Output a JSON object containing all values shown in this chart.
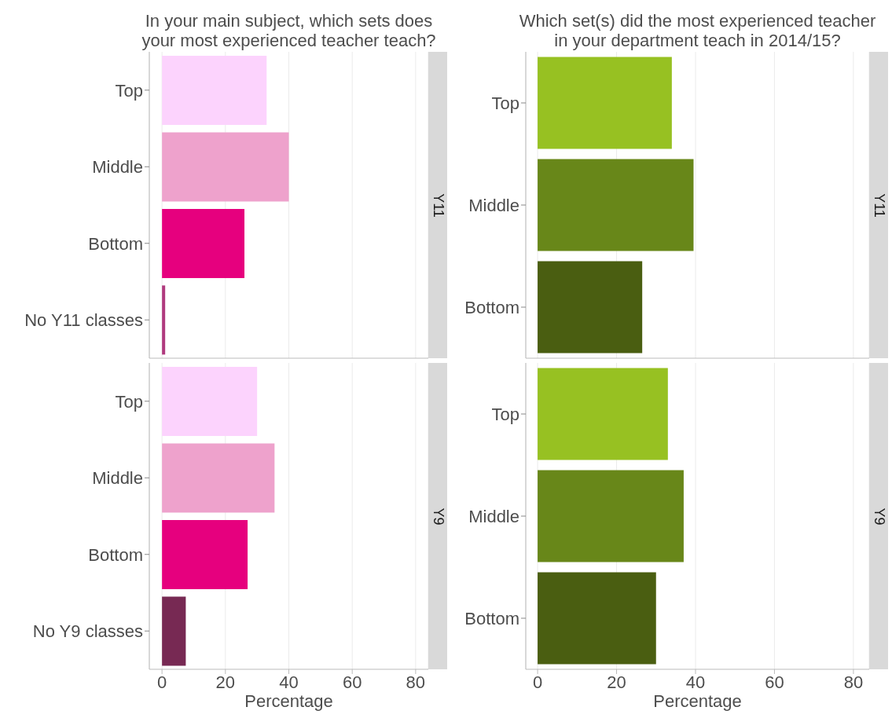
{
  "chart_data": [
    {
      "type": "bar",
      "orientation": "horizontal",
      "title": "In your main subject, which sets does\nyour most experienced teacher teach?",
      "y2label": "Y11",
      "categories": [
        "Top",
        "Middle",
        "Bottom",
        "No Y11 classes"
      ],
      "values": [
        33,
        40,
        26,
        1
      ],
      "colors": [
        "#fcd3fd",
        "#eea2cc",
        "#e6007e",
        "#b03a7e"
      ],
      "xlim": [
        -4,
        84
      ],
      "xticks": [
        0,
        20,
        40,
        60,
        80
      ],
      "grid": "x",
      "tick_labels": "y"
    },
    {
      "type": "bar",
      "orientation": "horizontal",
      "title": "Which set(s) did the most experienced teacher\nin your department teach in 2014/15?",
      "y2label": "Y11",
      "categories": [
        "Top",
        "Middle",
        "Bottom"
      ],
      "values": [
        34,
        39.5,
        26.5
      ],
      "colors": [
        "#97c122",
        "#688719",
        "#4a5e11"
      ],
      "xlim": [
        -3,
        84
      ],
      "xticks": [
        0,
        20,
        40,
        60,
        80
      ],
      "grid": "x",
      "tick_labels": "y"
    },
    {
      "type": "bar",
      "orientation": "horizontal",
      "y2label": "Y9",
      "xlabel": "Percentage",
      "categories": [
        "Top",
        "Middle",
        "Bottom",
        "No Y9 classes"
      ],
      "values": [
        30,
        35.5,
        27,
        7.5
      ],
      "colors": [
        "#fcd3fd",
        "#eea2cc",
        "#e6007e",
        "#772953"
      ],
      "xlim": [
        -4,
        84
      ],
      "xticks": [
        0,
        20,
        40,
        60,
        80
      ],
      "grid": "x"
    },
    {
      "type": "bar",
      "orientation": "horizontal",
      "y2label": "Y9",
      "xlabel": "Percentage",
      "categories": [
        "Top",
        "Middle",
        "Bottom"
      ],
      "values": [
        33,
        37,
        30
      ],
      "colors": [
        "#97c122",
        "#688719",
        "#4a5e11"
      ],
      "xlim": [
        -3,
        84
      ],
      "xticks": [
        0,
        20,
        40,
        60,
        80
      ],
      "grid": "x"
    }
  ]
}
